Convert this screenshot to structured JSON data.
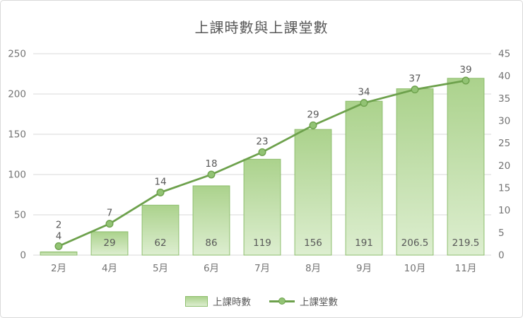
{
  "chart_data": {
    "type": "combo",
    "title": "上課時數與上課堂數",
    "categories": [
      "2月",
      "4月",
      "5月",
      "6月",
      "7月",
      "8月",
      "9月",
      "10月",
      "11月"
    ],
    "series": [
      {
        "name": "上課時數",
        "type": "bar",
        "axis": "left",
        "values": [
          4,
          29,
          62,
          86,
          119,
          156,
          191,
          206.5,
          219.5
        ]
      },
      {
        "name": "上課堂數",
        "type": "line",
        "axis": "right",
        "values": [
          2,
          7,
          14,
          18,
          23,
          29,
          34,
          37,
          39
        ]
      }
    ],
    "left_axis": {
      "min": 0,
      "max": 250,
      "step": 50,
      "ticks": [
        0,
        50,
        100,
        150,
        200,
        250
      ]
    },
    "right_axis": {
      "min": 0,
      "max": 45,
      "step": 5,
      "ticks": [
        0,
        5,
        10,
        15,
        20,
        25,
        30,
        35,
        40,
        45
      ]
    },
    "grid": true,
    "legend_position": "bottom"
  },
  "colors": {
    "bar_fill_top": "#abd28c",
    "bar_fill_bottom": "#ddeed0",
    "bar_border": "#8ebe6e",
    "line": "#6da14c",
    "marker_fill": "#92c374",
    "grid": "#d9d9d9",
    "tick_text": "#737373",
    "label_text": "#595959",
    "title_text": "#595959",
    "card_border": "#d9d9d9",
    "background": "#ffffff"
  }
}
